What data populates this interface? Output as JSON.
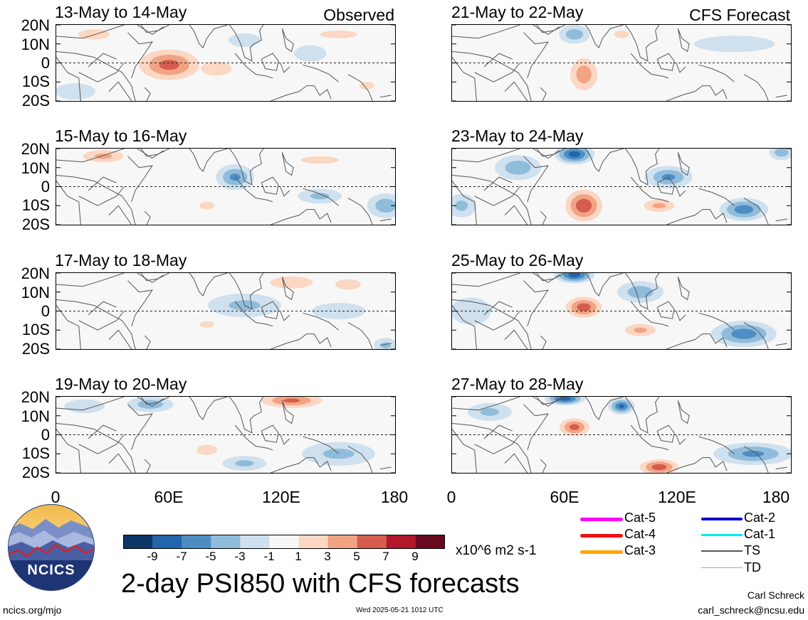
{
  "title": "2-day PSI850 with CFS forecasts",
  "column_tags": {
    "observed": "Observed",
    "forecast": "CFS Forecast"
  },
  "lat_labels": [
    "20N",
    "10N",
    "0",
    "10S",
    "20S"
  ],
  "lon_labels": [
    "0",
    "60E",
    "120E",
    "180"
  ],
  "panels": [
    {
      "title": "13-May to 14-May",
      "column": "observed"
    },
    {
      "title": "15-May to 16-May",
      "column": "observed"
    },
    {
      "title": "17-May to 18-May",
      "column": "observed"
    },
    {
      "title": "19-May to 20-May",
      "column": "observed"
    },
    {
      "title": "21-May to 22-May",
      "column": "forecast"
    },
    {
      "title": "23-May to 24-May",
      "column": "forecast"
    },
    {
      "title": "25-May to 26-May",
      "column": "forecast"
    },
    {
      "title": "27-May to 28-May",
      "column": "forecast"
    }
  ],
  "colorbar": {
    "units": "x10^6 m2 s-1",
    "labels": [
      "-9",
      "-7",
      "-5",
      "-3",
      "-1",
      "1",
      "3",
      "5",
      "7",
      "9"
    ],
    "colors": [
      "#0d3566",
      "#2265aa",
      "#4d8dc3",
      "#8fbcdb",
      "#cfe0ee",
      "#f7f7f7",
      "#fbd7c4",
      "#f2a384",
      "#d45d4f",
      "#b1182b",
      "#670a1f"
    ]
  },
  "storm_legend": [
    {
      "label": "Cat-5",
      "color": "#ff00ff"
    },
    {
      "label": "Cat-4",
      "color": "#ee1111"
    },
    {
      "label": "Cat-3",
      "color": "#ffa500"
    },
    {
      "label": "Cat-2",
      "color": "#0000cc"
    },
    {
      "label": "Cat-1",
      "color": "#00eeee"
    },
    {
      "label": "TS",
      "color": "#555555"
    },
    {
      "label": "TD",
      "color": "#aaaaaa"
    }
  ],
  "logo": {
    "text": "NCICS"
  },
  "footer": {
    "website": "ncics.org/mjo",
    "timestamp": "Wed 2025-05-21 1012 UTC",
    "author": "Carl Schreck",
    "email": "carl_schreck@ncsu.edu"
  },
  "field_anomalies": [
    [
      {
        "lon": 60,
        "lat": -1,
        "v": 7.5,
        "rx": 24,
        "ry": 12
      },
      {
        "lon": 85,
        "lat": -3,
        "v": 4,
        "rx": 18,
        "ry": 8
      },
      {
        "lon": 20,
        "lat": 15,
        "v": 3,
        "rx": 25,
        "ry": 8
      },
      {
        "lon": 150,
        "lat": 15,
        "v": 3,
        "rx": 30,
        "ry": 6
      },
      {
        "lon": 165,
        "lat": -12,
        "v": 3,
        "rx": 12,
        "ry": 6
      },
      {
        "lon": 100,
        "lat": 12,
        "v": -2,
        "rx": 12,
        "ry": 5
      },
      {
        "lon": 135,
        "lat": 5,
        "v": -2,
        "rx": 12,
        "ry": 6
      },
      {
        "lon": 10,
        "lat": -15,
        "v": -2,
        "rx": 15,
        "ry": 6
      }
    ],
    [
      {
        "lon": 25,
        "lat": 16,
        "v": 5,
        "rx": 20,
        "ry": 6
      },
      {
        "lon": 95,
        "lat": 5,
        "v": -5,
        "rx": 12,
        "ry": 8
      },
      {
        "lon": 80,
        "lat": -10,
        "v": 3,
        "rx": 12,
        "ry": 6
      },
      {
        "lon": 140,
        "lat": 14,
        "v": 3,
        "rx": 30,
        "ry": 6
      },
      {
        "lon": 175,
        "lat": -10,
        "v": -4,
        "rx": 12,
        "ry": 8
      },
      {
        "lon": 140,
        "lat": -5,
        "v": -3,
        "rx": 15,
        "ry": 5
      },
      {
        "lon": 45,
        "lat": 0,
        "v": 1.5,
        "rx": 25,
        "ry": 10
      }
    ],
    [
      {
        "lon": 125,
        "lat": 15,
        "v": 4,
        "rx": 25,
        "ry": 7
      },
      {
        "lon": 155,
        "lat": 14,
        "v": 4,
        "rx": 15,
        "ry": 6
      },
      {
        "lon": 80,
        "lat": -7,
        "v": 3,
        "rx": 12,
        "ry": 5
      },
      {
        "lon": 100,
        "lat": 3,
        "v": -3,
        "rx": 25,
        "ry": 8
      },
      {
        "lon": 150,
        "lat": 0,
        "v": -2,
        "rx": 20,
        "ry": 6
      },
      {
        "lon": 175,
        "lat": -18,
        "v": -3,
        "rx": 8,
        "ry": 5
      },
      {
        "lon": 20,
        "lat": 12,
        "v": 1.5,
        "rx": 25,
        "ry": 7
      }
    ],
    [
      {
        "lon": 125,
        "lat": 18,
        "v": 7,
        "rx": 25,
        "ry": 6
      },
      {
        "lon": 50,
        "lat": 16,
        "v": -4,
        "rx": 15,
        "ry": 5
      },
      {
        "lon": 80,
        "lat": -8,
        "v": 4,
        "rx": 12,
        "ry": 6
      },
      {
        "lon": 130,
        "lat": 5,
        "v": 2,
        "rx": 15,
        "ry": 6
      },
      {
        "lon": 100,
        "lat": -15,
        "v": -3,
        "rx": 15,
        "ry": 5
      },
      {
        "lon": 150,
        "lat": -10,
        "v": -3,
        "rx": 25,
        "ry": 8
      },
      {
        "lon": 5,
        "lat": -10,
        "v": 2.5,
        "rx": 10,
        "ry": 6
      },
      {
        "lon": 15,
        "lat": 15,
        "v": -2,
        "rx": 15,
        "ry": 5
      }
    ],
    [
      {
        "lon": 70,
        "lat": -6,
        "v": 6,
        "rx": 12,
        "ry": 14
      },
      {
        "lon": 65,
        "lat": 15,
        "v": -4,
        "rx": 10,
        "ry": 6
      },
      {
        "lon": 90,
        "lat": 15,
        "v": 3,
        "rx": 12,
        "ry": 6
      },
      {
        "lon": 150,
        "lat": 10,
        "v": -2,
        "rx": 30,
        "ry": 6
      },
      {
        "lon": 30,
        "lat": -8,
        "v": 2,
        "rx": 20,
        "ry": 8
      },
      {
        "lon": 120,
        "lat": -12,
        "v": 2,
        "rx": 20,
        "ry": 6
      }
    ],
    [
      {
        "lon": 70,
        "lat": -10,
        "v": 8.5,
        "rx": 14,
        "ry": 12
      },
      {
        "lon": 65,
        "lat": 17,
        "v": -8,
        "rx": 12,
        "ry": 6
      },
      {
        "lon": 35,
        "lat": 10,
        "v": -4,
        "rx": 15,
        "ry": 8
      },
      {
        "lon": 115,
        "lat": 5,
        "v": -5,
        "rx": 15,
        "ry": 7
      },
      {
        "lon": 110,
        "lat": -10,
        "v": 5,
        "rx": 15,
        "ry": 6
      },
      {
        "lon": 155,
        "lat": -12,
        "v": -6,
        "rx": 15,
        "ry": 7
      },
      {
        "lon": 175,
        "lat": 18,
        "v": -4,
        "rx": 8,
        "ry": 5
      },
      {
        "lon": 5,
        "lat": -10,
        "v": -3,
        "rx": 10,
        "ry": 8
      }
    ],
    [
      {
        "lon": 70,
        "lat": 2,
        "v": 8,
        "rx": 14,
        "ry": 8
      },
      {
        "lon": 65,
        "lat": 19,
        "v": -8,
        "rx": 12,
        "ry": 5
      },
      {
        "lon": 100,
        "lat": -10,
        "v": 5,
        "rx": 15,
        "ry": 6
      },
      {
        "lon": 155,
        "lat": -12,
        "v": -6,
        "rx": 20,
        "ry": 8
      },
      {
        "lon": 100,
        "lat": 10,
        "v": -4,
        "rx": 15,
        "ry": 7
      },
      {
        "lon": 160,
        "lat": 10,
        "v": 2,
        "rx": 20,
        "ry": 5
      },
      {
        "lon": 10,
        "lat": 0,
        "v": -2,
        "rx": 15,
        "ry": 10
      }
    ],
    [
      {
        "lon": 65,
        "lat": 4,
        "v": 7.5,
        "rx": 12,
        "ry": 7
      },
      {
        "lon": 60,
        "lat": 19,
        "v": -8,
        "rx": 12,
        "ry": 4
      },
      {
        "lon": 90,
        "lat": 15,
        "v": -7,
        "rx": 8,
        "ry": 5
      },
      {
        "lon": 110,
        "lat": -17,
        "v": 8,
        "rx": 15,
        "ry": 6
      },
      {
        "lon": 160,
        "lat": -10,
        "v": -5,
        "rx": 25,
        "ry": 7
      },
      {
        "lon": 140,
        "lat": 12,
        "v": 2,
        "rx": 20,
        "ry": 6
      },
      {
        "lon": 20,
        "lat": 12,
        "v": -3,
        "rx": 15,
        "ry": 6
      }
    ]
  ]
}
